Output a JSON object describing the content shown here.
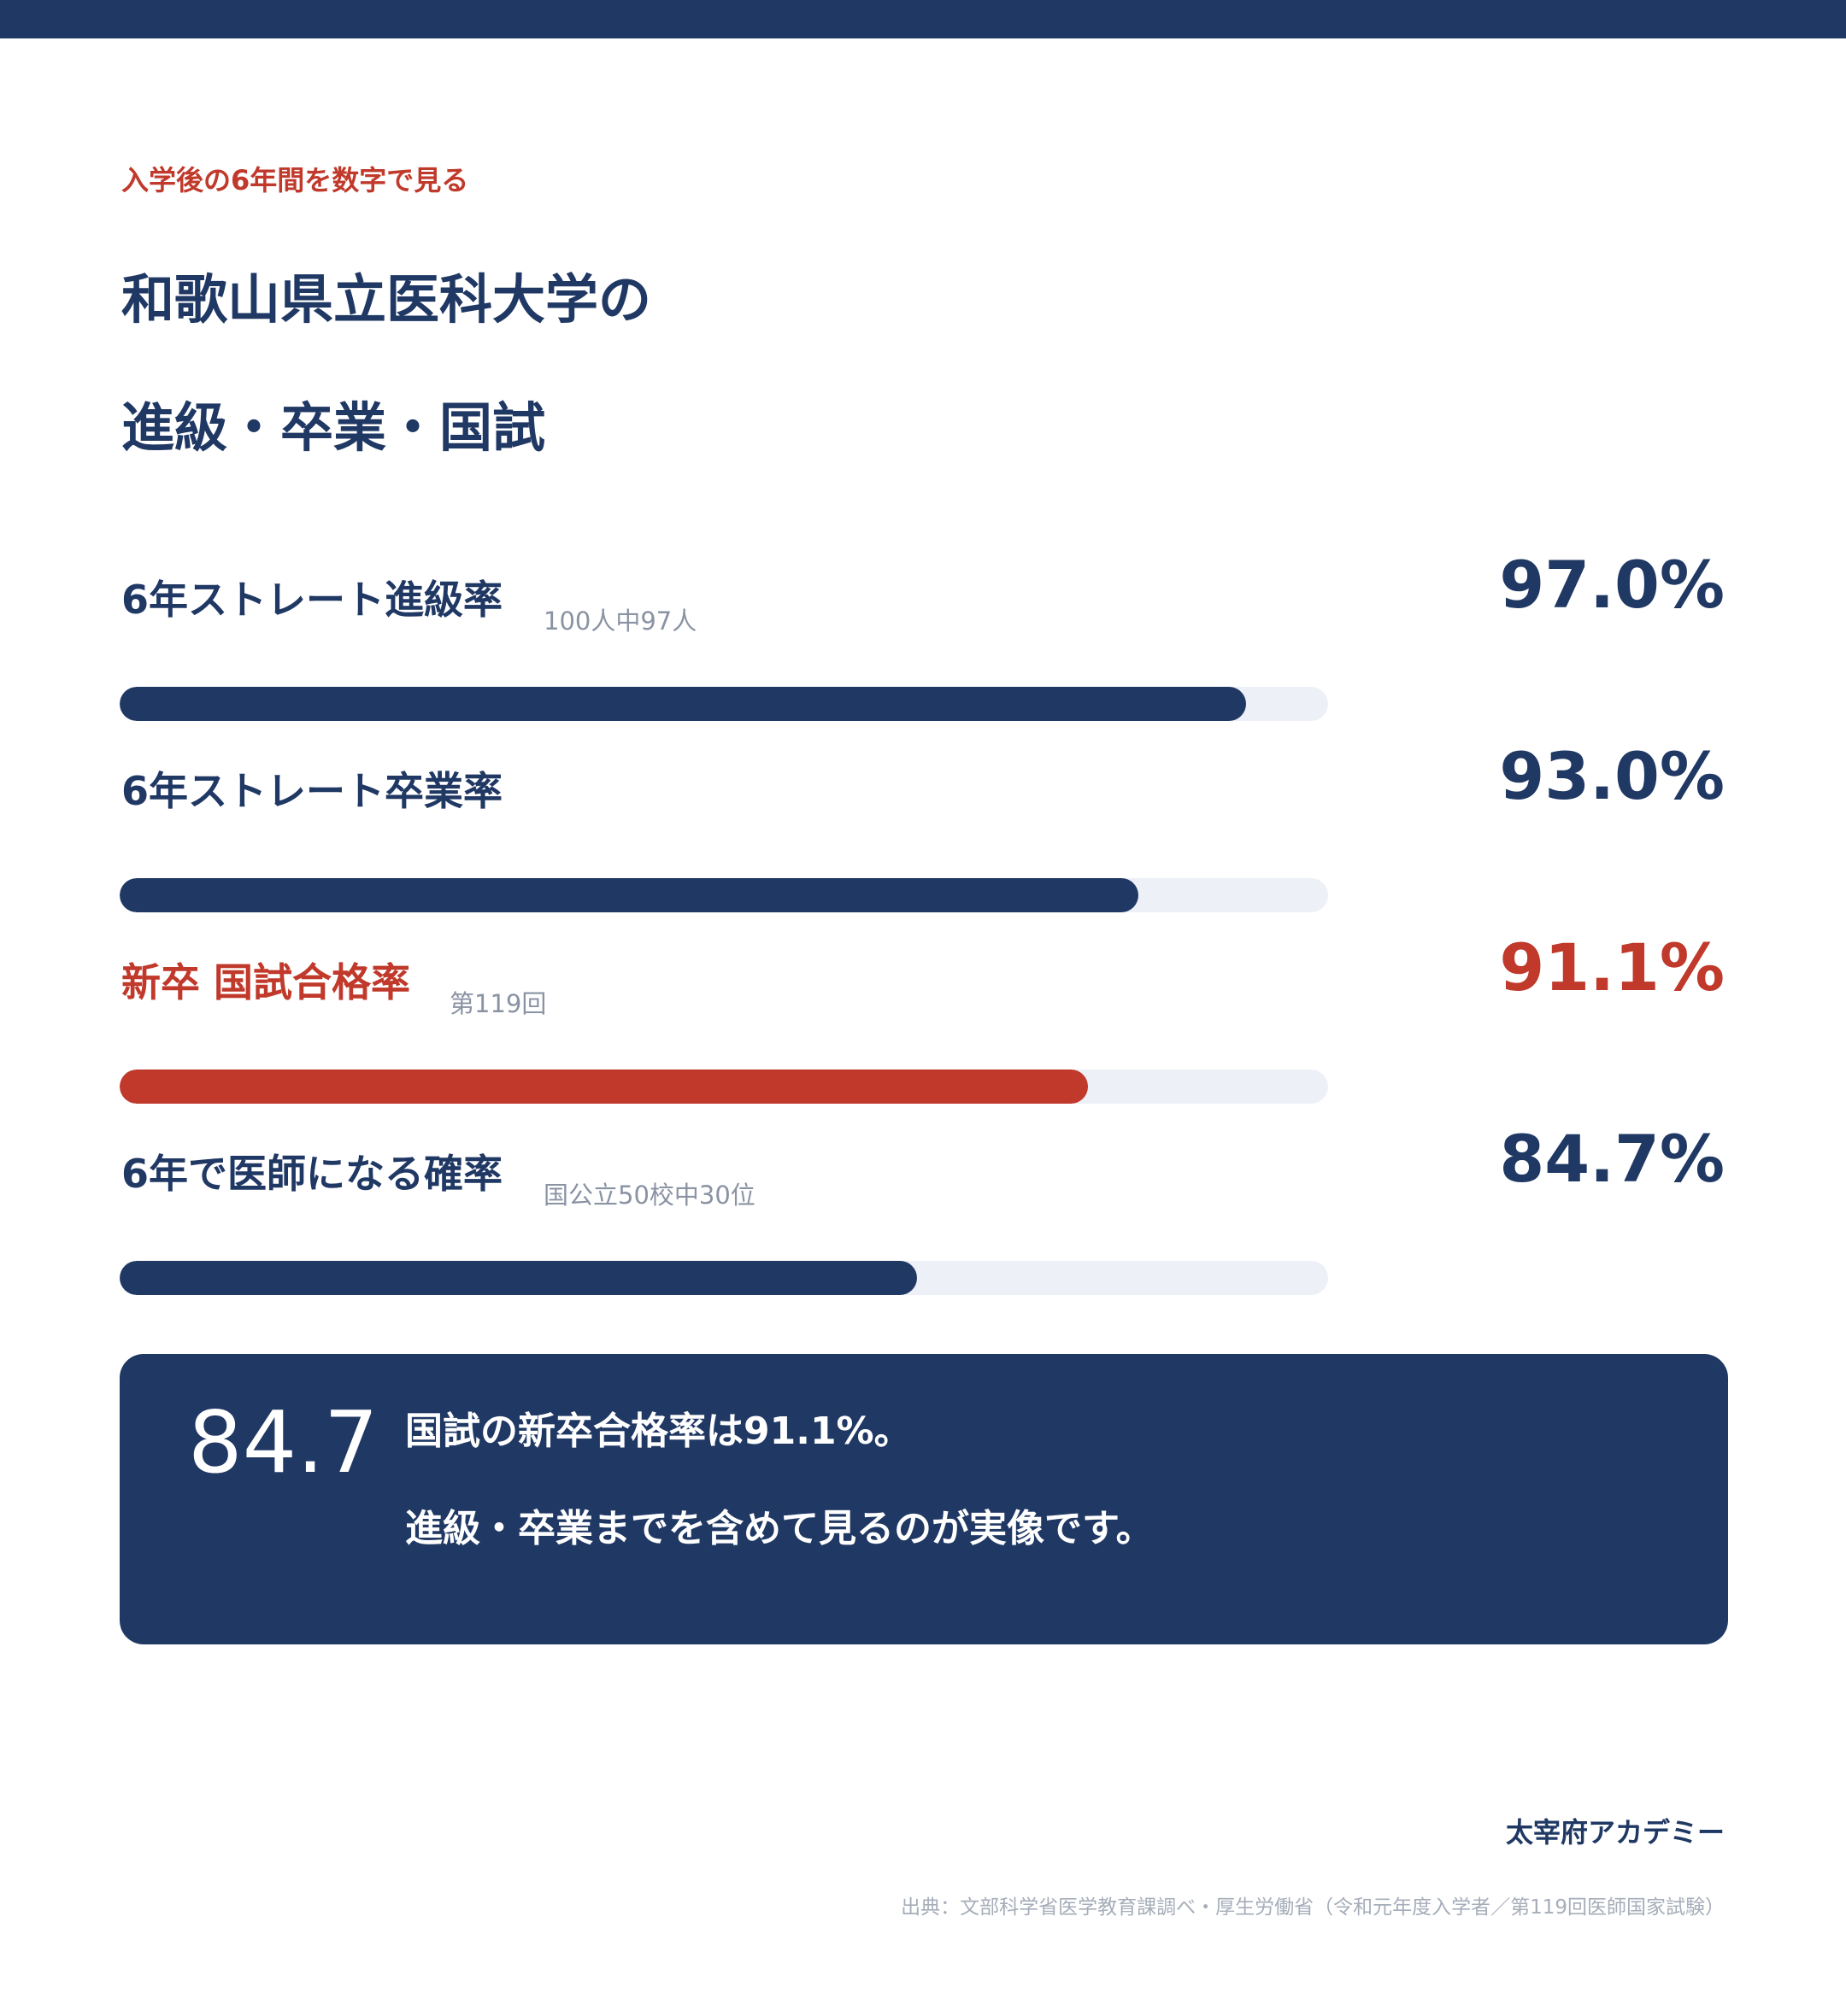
{
  "header": {
    "eyebrow": "入学後の6年間を数字で見る",
    "title_line1": "和歌山県立医科大学の",
    "title_line2": "進級・卒業・国試"
  },
  "colors": {
    "primary": "#203864",
    "accent": "#c0392b",
    "track": "#edf0f7"
  },
  "chart_data": {
    "type": "bar",
    "orientation": "horizontal",
    "xlim": [
      0,
      100
    ],
    "categories": [
      "6年ストレート進級率",
      "6年ストレート卒業率",
      "新卒 国試合格率",
      "6年で医師になる確率"
    ],
    "values": [
      97.0,
      93.0,
      91.1,
      84.7
    ],
    "value_labels": [
      "97.0%",
      "93.0%",
      "91.1%",
      "84.7%"
    ],
    "notes": [
      "100人中97人",
      "",
      "第119回",
      "国公立50校中30位"
    ],
    "highlight_index": 2
  },
  "summary": {
    "number": "84.7",
    "line1": "国試の新卒合格率は91.1%。",
    "line2": "進級・卒業までを含めて見るのが実像です。"
  },
  "footer": {
    "brand": "太宰府アカデミー",
    "source": "出典：文部科学省医学教育課調べ・厚生労働省（令和元年度入学者／第119回医師国家試験）"
  }
}
